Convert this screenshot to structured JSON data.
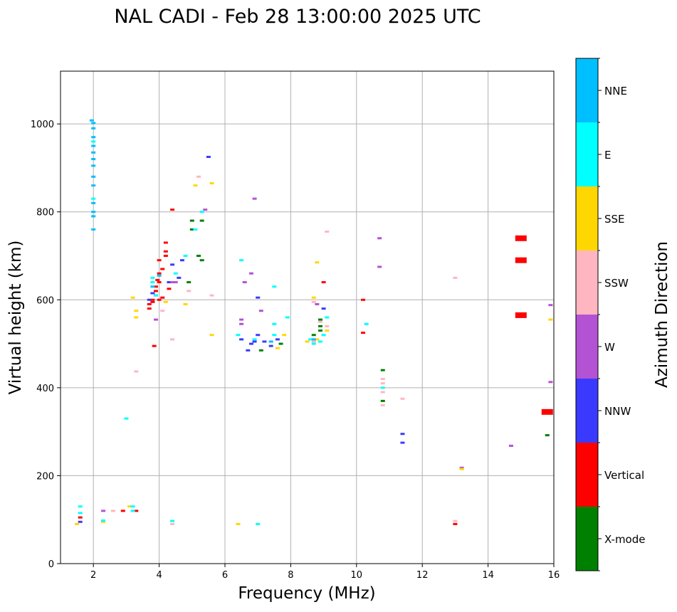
{
  "chart_data": {
    "type": "scatter",
    "title": "NAL CADI - Feb 28 13:00:00 2025 UTC",
    "xlabel": "Frequency (MHz)",
    "ylabel": "Virtual height (km)",
    "xlim": [
      1,
      16
    ],
    "ylim": [
      0,
      1120
    ],
    "xticks": [
      2,
      4,
      6,
      8,
      10,
      12,
      14,
      16
    ],
    "yticks": [
      0,
      200,
      400,
      600,
      800,
      1000
    ],
    "grid": true,
    "colorbar": {
      "label": "Azimuth Direction",
      "categories": [
        "X-mode",
        "Vertical",
        "NNW",
        "W",
        "SSW",
        "SSE",
        "E",
        "NNE"
      ],
      "colors": [
        "#008000",
        "#ff0000",
        "#3a3aff",
        "#b452d4",
        "#ffb6c1",
        "#ffd700",
        "#00ffff",
        "#00bfff"
      ]
    },
    "series": [
      {
        "name": "X-mode",
        "points": [
          [
            5.0,
            760
          ],
          [
            5.0,
            780
          ],
          [
            5.2,
            700
          ],
          [
            5.3,
            690
          ],
          [
            8.9,
            540
          ],
          [
            8.9,
            530
          ],
          [
            8.9,
            555
          ],
          [
            8.7,
            520
          ],
          [
            10.8,
            370
          ],
          [
            10.8,
            440
          ],
          [
            15.8,
            292
          ],
          [
            7.7,
            500
          ],
          [
            7.1,
            485
          ],
          [
            5.3,
            780
          ],
          [
            4.9,
            640
          ]
        ]
      },
      {
        "name": "Vertical",
        "points": [
          [
            3.7,
            580
          ],
          [
            3.7,
            590
          ],
          [
            3.8,
            600
          ],
          [
            3.8,
            595
          ],
          [
            3.9,
            610
          ],
          [
            3.9,
            620
          ],
          [
            3.9,
            630
          ],
          [
            3.95,
            645
          ],
          [
            4.0,
            640
          ],
          [
            4.0,
            660
          ],
          [
            4.1,
            670
          ],
          [
            4.2,
            700
          ],
          [
            4.2,
            710
          ],
          [
            4.2,
            730
          ],
          [
            4.0,
            690
          ],
          [
            4.0,
            600
          ],
          [
            4.1,
            605
          ],
          [
            4.4,
            805
          ],
          [
            3.3,
            120
          ],
          [
            2.9,
            120
          ],
          [
            10.2,
            600
          ],
          [
            10.2,
            525
          ],
          [
            9.0,
            640
          ],
          [
            13.0,
            90
          ],
          [
            15.8,
            345
          ],
          [
            15.0,
            740
          ],
          [
            15.0,
            690
          ],
          [
            15.0,
            565
          ],
          [
            3.85,
            495
          ],
          [
            1.6,
            105
          ],
          [
            4.3,
            625
          ]
        ]
      },
      {
        "name": "NNW",
        "points": [
          [
            3.7,
            600
          ],
          [
            3.8,
            615
          ],
          [
            4.4,
            680
          ],
          [
            4.3,
            640
          ],
          [
            4.6,
            650
          ],
          [
            6.5,
            510
          ],
          [
            6.8,
            500
          ],
          [
            6.9,
            505
          ],
          [
            7.0,
            520
          ],
          [
            7.2,
            505
          ],
          [
            7.4,
            495
          ],
          [
            7.6,
            510
          ],
          [
            9.0,
            580
          ],
          [
            11.4,
            295
          ],
          [
            11.4,
            275
          ],
          [
            5.5,
            925
          ],
          [
            6.7,
            485
          ],
          [
            7.0,
            605
          ],
          [
            1.6,
            95
          ],
          [
            4.7,
            690
          ]
        ]
      },
      {
        "name": "W",
        "points": [
          [
            3.9,
            555
          ],
          [
            4.4,
            640
          ],
          [
            5.4,
            805
          ],
          [
            6.9,
            830
          ],
          [
            6.8,
            660
          ],
          [
            6.6,
            640
          ],
          [
            6.5,
            555
          ],
          [
            6.5,
            545
          ],
          [
            7.1,
            575
          ],
          [
            10.7,
            740
          ],
          [
            10.7,
            675
          ],
          [
            13.2,
            218
          ],
          [
            14.7,
            268
          ],
          [
            15.9,
            588
          ],
          [
            15.9,
            413
          ],
          [
            8.8,
            590
          ],
          [
            2.3,
            120
          ],
          [
            4.5,
            640
          ]
        ]
      },
      {
        "name": "SSW",
        "points": [
          [
            5.2,
            880
          ],
          [
            4.9,
            620
          ],
          [
            4.1,
            575
          ],
          [
            4.4,
            510
          ],
          [
            3.3,
            437
          ],
          [
            9.1,
            755
          ],
          [
            10.8,
            420
          ],
          [
            10.8,
            410
          ],
          [
            10.8,
            390
          ],
          [
            10.8,
            360
          ],
          [
            11.4,
            375
          ],
          [
            13.0,
            650
          ],
          [
            13.0,
            97
          ],
          [
            8.7,
            595
          ],
          [
            8.9,
            550
          ],
          [
            9.1,
            540
          ],
          [
            8.7,
            505
          ],
          [
            2.6,
            120
          ],
          [
            4.4,
            90
          ],
          [
            5.6,
            610
          ]
        ]
      },
      {
        "name": "SSE",
        "points": [
          [
            5.1,
            860
          ],
          [
            5.6,
            865
          ],
          [
            3.2,
            605
          ],
          [
            3.3,
            575
          ],
          [
            3.3,
            560
          ],
          [
            4.2,
            595
          ],
          [
            4.8,
            590
          ],
          [
            5.6,
            520
          ],
          [
            8.8,
            685
          ],
          [
            8.7,
            605
          ],
          [
            8.5,
            505
          ],
          [
            8.8,
            510
          ],
          [
            9.1,
            530
          ],
          [
            7.6,
            490
          ],
          [
            7.8,
            520
          ],
          [
            6.4,
            90
          ],
          [
            13.2,
            215
          ],
          [
            15.9,
            555
          ],
          [
            2.3,
            95
          ],
          [
            1.5,
            90
          ],
          [
            3.1,
            130
          ]
        ]
      },
      {
        "name": "E",
        "points": [
          [
            3.0,
            330
          ],
          [
            3.2,
            130
          ],
          [
            3.2,
            120
          ],
          [
            4.4,
            97
          ],
          [
            7.0,
            90
          ],
          [
            2.3,
            98
          ],
          [
            1.6,
            130
          ],
          [
            1.6,
            115
          ],
          [
            3.8,
            640
          ],
          [
            3.8,
            650
          ],
          [
            3.9,
            610
          ],
          [
            4.5,
            660
          ],
          [
            4.8,
            700
          ],
          [
            5.1,
            760
          ],
          [
            5.3,
            800
          ],
          [
            6.5,
            690
          ],
          [
            7.5,
            630
          ],
          [
            7.5,
            545
          ],
          [
            7.5,
            520
          ],
          [
            7.9,
            560
          ],
          [
            8.6,
            510
          ],
          [
            8.7,
            500
          ],
          [
            8.9,
            505
          ],
          [
            9.1,
            560
          ],
          [
            9.0,
            520
          ],
          [
            10.3,
            545
          ],
          [
            10.8,
            400
          ],
          [
            2.0,
            960
          ],
          [
            2.0,
            830
          ],
          [
            6.4,
            520
          ],
          [
            6.9,
            510
          ]
        ]
      },
      {
        "name": "NNE",
        "points": [
          [
            1.95,
            1008
          ],
          [
            2.0,
            1002
          ],
          [
            2.0,
            990
          ],
          [
            2.0,
            970
          ],
          [
            2.0,
            950
          ],
          [
            2.0,
            935
          ],
          [
            2.0,
            920
          ],
          [
            2.0,
            905
          ],
          [
            2.0,
            880
          ],
          [
            2.0,
            860
          ],
          [
            2.0,
            820
          ],
          [
            2.0,
            800
          ],
          [
            2.0,
            790
          ],
          [
            2.0,
            760
          ],
          [
            3.8,
            630
          ],
          [
            4.0,
            655
          ],
          [
            7.4,
            505
          ],
          [
            8.7,
            510
          ]
        ]
      }
    ]
  }
}
